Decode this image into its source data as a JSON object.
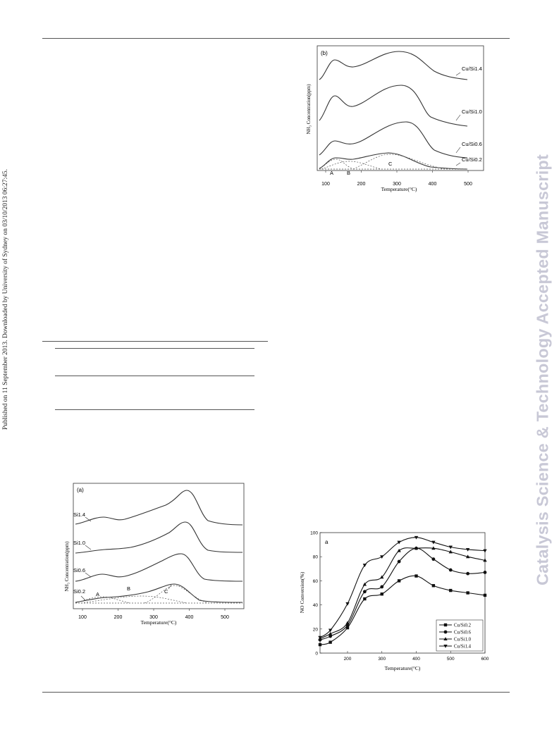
{
  "sidebar": {
    "published_note": "Published on 11 September 2013. Downloaded by University of Sydney on 03/10/2013 06:27:45.",
    "watermark": "Catalysis Science & Technology Accepted Manuscript"
  },
  "figure_b": {
    "panel_label": "(b)",
    "ylabel": "NH₃ Concentration(ppm)",
    "xlabel": "Temperature(°C)",
    "xticks": [
      "100",
      "200",
      "300",
      "400",
      "500"
    ],
    "curve_labels": [
      "Cu/Si1.4",
      "Cu/Si1.0",
      "Cu/Si0.6",
      "Cu/Si0.2"
    ],
    "peak_labels": [
      "A",
      "B",
      "C"
    ]
  },
  "figure_a": {
    "panel_label": "(a)",
    "ylabel": "NH₃ Concentration(ppm)",
    "xlabel": "Temperature(°C)",
    "xticks": [
      "100",
      "200",
      "300",
      "400",
      "500"
    ],
    "curve_labels": [
      "Si1.4",
      "Si1.0",
      "Si0.6",
      "Si0.2"
    ],
    "peak_labels": [
      "A",
      "B",
      "C"
    ]
  },
  "chart_data": {
    "type": "line",
    "panel_label": "a",
    "xlabel": "Temperature(°C)",
    "ylabel": "NO Conversion(%)",
    "xlim": [
      120,
      600
    ],
    "ylim": [
      0,
      100
    ],
    "xticks": [
      200,
      300,
      400,
      500,
      600
    ],
    "yticks": [
      0,
      20,
      40,
      60,
      80,
      100
    ],
    "legend_position": "bottom-right",
    "x": [
      120,
      150,
      200,
      250,
      300,
      350,
      400,
      450,
      500,
      550,
      600
    ],
    "series": [
      {
        "name": "Cu/Si0.2",
        "marker": "square",
        "values": [
          7,
          9,
          21,
          45,
          49,
          60,
          64,
          56,
          52,
          50,
          48
        ]
      },
      {
        "name": "Cu/Si0.6",
        "marker": "circle",
        "values": [
          11,
          14,
          23,
          51,
          55,
          76,
          87,
          78,
          69,
          66,
          67
        ]
      },
      {
        "name": "Cu/Si1.0",
        "marker": "triangle-up",
        "values": [
          12,
          16,
          25,
          57,
          63,
          85,
          87,
          87,
          84,
          80,
          77
        ]
      },
      {
        "name": "Cu/Si1.4",
        "marker": "triangle-down",
        "values": [
          13,
          19,
          41,
          73,
          80,
          92,
          96,
          92,
          88,
          86,
          85
        ]
      }
    ]
  }
}
